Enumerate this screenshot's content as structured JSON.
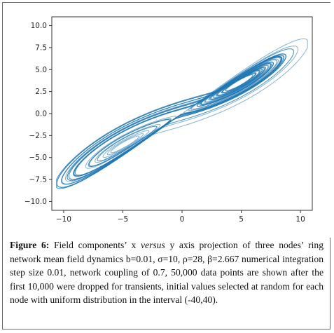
{
  "chart_data": {
    "type": "line",
    "title": "",
    "xlabel": "",
    "ylabel": "",
    "xlim": [
      -11.0,
      11.0
    ],
    "ylim": [
      -11.0,
      11.0
    ],
    "x_ticks": [
      -10,
      -5,
      0,
      5,
      10
    ],
    "x_tick_labels": [
      "−10",
      "−5",
      "0",
      "5",
      "10"
    ],
    "y_ticks": [
      10.0,
      7.5,
      5.0,
      2.5,
      0.0,
      -2.5,
      -5.0,
      -7.5,
      -10.0
    ],
    "y_tick_labels": [
      "10.0",
      "7.5",
      "5.0",
      "2.5",
      "0.0",
      "−2.5",
      "−5.0",
      "−7.5",
      "−10.0"
    ],
    "grid": false,
    "series_color": "#1f77b4",
    "description_of_data": "Lorenz-like butterfly attractor trajectory (x vs y) with two lobes centered near (-5,-4) and (5,4), extending from about (-10,-10) to (10,10)"
  },
  "caption": {
    "label": "Figure 6:",
    "text_part1": " Field components’ x ",
    "italic_word": "versus",
    "text_part2": " y axis projection of three nodes’ ring network mean field dynamics b=0.01, σ=10, ρ=28, β=2.667 numerical integration step size 0.01, network coupling of 0.7, 50,000 data points are shown after the first 10,000 were dropped for transients, initial values selected at random for each node with uniform distribution in the interval (-40,40)."
  },
  "colors": {
    "frame_border": "#3a8a44",
    "trajectory": "#1f77b4"
  }
}
